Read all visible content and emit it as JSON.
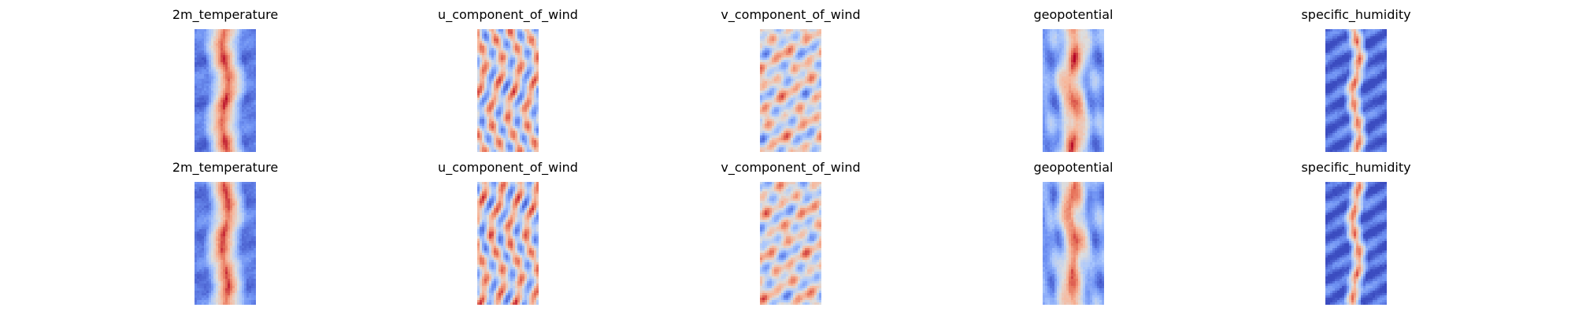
{
  "rows": [
    {
      "panels": [
        {
          "title": "2m_temperature",
          "pattern": "band",
          "seed": 1
        },
        {
          "title": "u_component_of_wind",
          "pattern": "streaks",
          "seed": 2
        },
        {
          "title": "v_component_of_wind",
          "pattern": "swirl",
          "seed": 3
        },
        {
          "title": "geopotential",
          "pattern": "band-soft",
          "seed": 4
        },
        {
          "title": "specific_humidity",
          "pattern": "narrow",
          "seed": 5
        }
      ]
    },
    {
      "panels": [
        {
          "title": "2m_temperature",
          "pattern": "band",
          "seed": 11
        },
        {
          "title": "u_component_of_wind",
          "pattern": "streaks",
          "seed": 12
        },
        {
          "title": "v_component_of_wind",
          "pattern": "swirl",
          "seed": 13
        },
        {
          "title": "geopotential",
          "pattern": "band-soft",
          "seed": 14
        },
        {
          "title": "specific_humidity",
          "pattern": "narrow",
          "seed": 15
        }
      ]
    }
  ],
  "colormap": [
    "#3b4cc0",
    "#6f92f3",
    "#aac7fd",
    "#dddddd",
    "#f7b89c",
    "#e7745b",
    "#b40426"
  ]
}
